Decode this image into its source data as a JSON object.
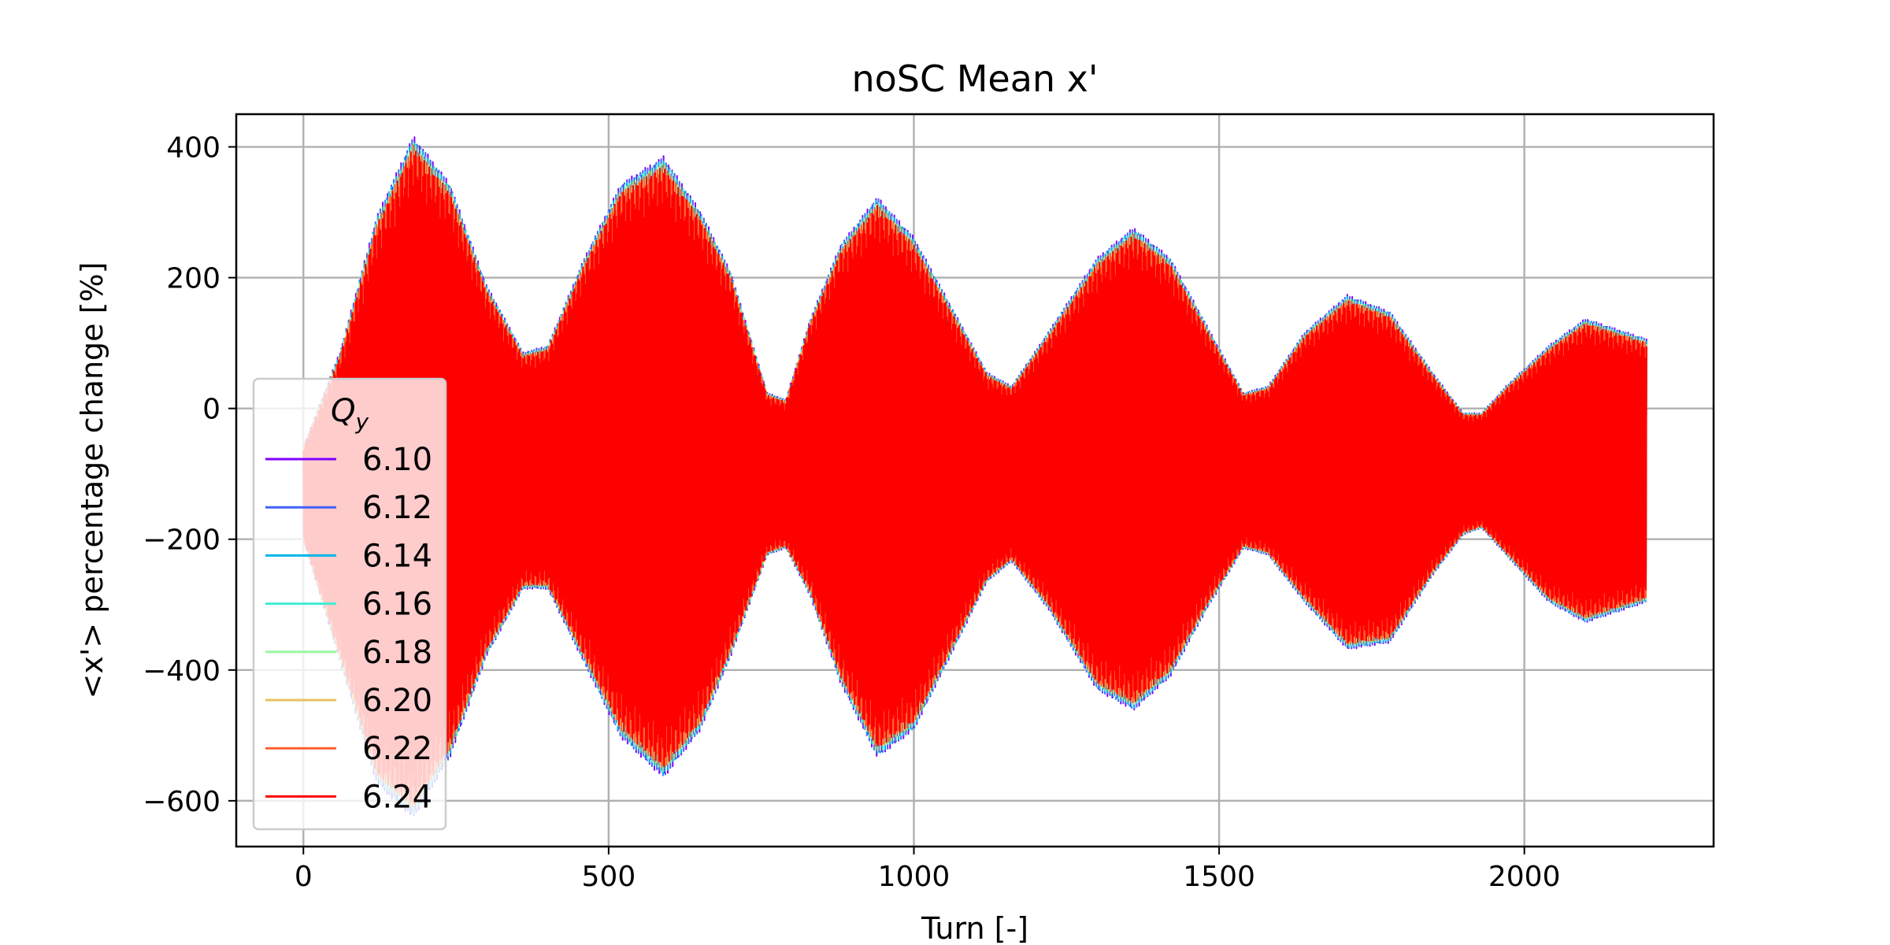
{
  "chart_data": {
    "type": "line",
    "title": "noSC Mean x'",
    "xlabel": "Turn [-]",
    "ylabel": "<x'> percentage change [%]",
    "xlim": [
      -110,
      2310
    ],
    "ylim": [
      -670,
      450
    ],
    "xticks": [
      0,
      500,
      1000,
      1500,
      2000
    ],
    "yticks": [
      400,
      200,
      0,
      -200,
      -400,
      -600
    ],
    "xtick_labels": [
      "0",
      "500",
      "1000",
      "1500",
      "2000"
    ],
    "ytick_labels": [
      "400",
      "200",
      "0",
      "−200",
      "−400",
      "−600"
    ],
    "grid": true,
    "legend": {
      "title_base": "Q",
      "title_sub": "y",
      "placement": "lower-left"
    },
    "series": [
      {
        "name": "6.10",
        "color": "#8000ff"
      },
      {
        "name": "6.12",
        "color": "#4062fa"
      },
      {
        "name": "6.14",
        "color": "#00b5eb"
      },
      {
        "name": "6.16",
        "color": "#40ecd4"
      },
      {
        "name": "6.18",
        "color": "#9cf5a3"
      },
      {
        "name": "6.20",
        "color": "#e8c263"
      },
      {
        "name": "6.22",
        "color": "#ff6030"
      },
      {
        "name": "6.24",
        "color": "#ff0000"
      }
    ],
    "oscillation": {
      "turns": 2200,
      "center": -100,
      "upper_envelope": [
        {
          "x": 0,
          "y": -60
        },
        {
          "x": 60,
          "y": 80
        },
        {
          "x": 120,
          "y": 280
        },
        {
          "x": 180,
          "y": 400
        },
        {
          "x": 240,
          "y": 330
        },
        {
          "x": 300,
          "y": 180
        },
        {
          "x": 360,
          "y": 80
        },
        {
          "x": 400,
          "y": 90
        },
        {
          "x": 460,
          "y": 220
        },
        {
          "x": 520,
          "y": 330
        },
        {
          "x": 590,
          "y": 370
        },
        {
          "x": 650,
          "y": 290
        },
        {
          "x": 700,
          "y": 200
        },
        {
          "x": 760,
          "y": 20
        },
        {
          "x": 790,
          "y": 10
        },
        {
          "x": 830,
          "y": 130
        },
        {
          "x": 880,
          "y": 240
        },
        {
          "x": 940,
          "y": 310
        },
        {
          "x": 1000,
          "y": 250
        },
        {
          "x": 1060,
          "y": 150
        },
        {
          "x": 1120,
          "y": 50
        },
        {
          "x": 1160,
          "y": 30
        },
        {
          "x": 1220,
          "y": 110
        },
        {
          "x": 1300,
          "y": 220
        },
        {
          "x": 1360,
          "y": 265
        },
        {
          "x": 1420,
          "y": 220
        },
        {
          "x": 1480,
          "y": 120
        },
        {
          "x": 1540,
          "y": 20
        },
        {
          "x": 1580,
          "y": 30
        },
        {
          "x": 1640,
          "y": 110
        },
        {
          "x": 1710,
          "y": 165
        },
        {
          "x": 1780,
          "y": 140
        },
        {
          "x": 1850,
          "y": 50
        },
        {
          "x": 1900,
          "y": -10
        },
        {
          "x": 1930,
          "y": -10
        },
        {
          "x": 1970,
          "y": 30
        },
        {
          "x": 2040,
          "y": 90
        },
        {
          "x": 2100,
          "y": 130
        },
        {
          "x": 2200,
          "y": 100
        }
      ],
      "lower_envelope": [
        {
          "x": 0,
          "y": -200
        },
        {
          "x": 60,
          "y": -380
        },
        {
          "x": 120,
          "y": -560
        },
        {
          "x": 180,
          "y": -610
        },
        {
          "x": 240,
          "y": -520
        },
        {
          "x": 300,
          "y": -370
        },
        {
          "x": 360,
          "y": -270
        },
        {
          "x": 400,
          "y": -270
        },
        {
          "x": 460,
          "y": -380
        },
        {
          "x": 520,
          "y": -490
        },
        {
          "x": 590,
          "y": -550
        },
        {
          "x": 650,
          "y": -480
        },
        {
          "x": 700,
          "y": -370
        },
        {
          "x": 760,
          "y": -220
        },
        {
          "x": 790,
          "y": -210
        },
        {
          "x": 830,
          "y": -280
        },
        {
          "x": 880,
          "y": -410
        },
        {
          "x": 940,
          "y": -520
        },
        {
          "x": 1000,
          "y": -480
        },
        {
          "x": 1060,
          "y": -370
        },
        {
          "x": 1120,
          "y": -260
        },
        {
          "x": 1160,
          "y": -230
        },
        {
          "x": 1220,
          "y": -300
        },
        {
          "x": 1300,
          "y": -420
        },
        {
          "x": 1360,
          "y": -450
        },
        {
          "x": 1420,
          "y": -400
        },
        {
          "x": 1480,
          "y": -300
        },
        {
          "x": 1540,
          "y": -210
        },
        {
          "x": 1580,
          "y": -220
        },
        {
          "x": 1640,
          "y": -290
        },
        {
          "x": 1710,
          "y": -360
        },
        {
          "x": 1780,
          "y": -350
        },
        {
          "x": 1850,
          "y": -250
        },
        {
          "x": 1900,
          "y": -190
        },
        {
          "x": 1930,
          "y": -180
        },
        {
          "x": 1970,
          "y": -220
        },
        {
          "x": 2040,
          "y": -290
        },
        {
          "x": 2100,
          "y": -320
        },
        {
          "x": 2200,
          "y": -290
        }
      ]
    }
  }
}
